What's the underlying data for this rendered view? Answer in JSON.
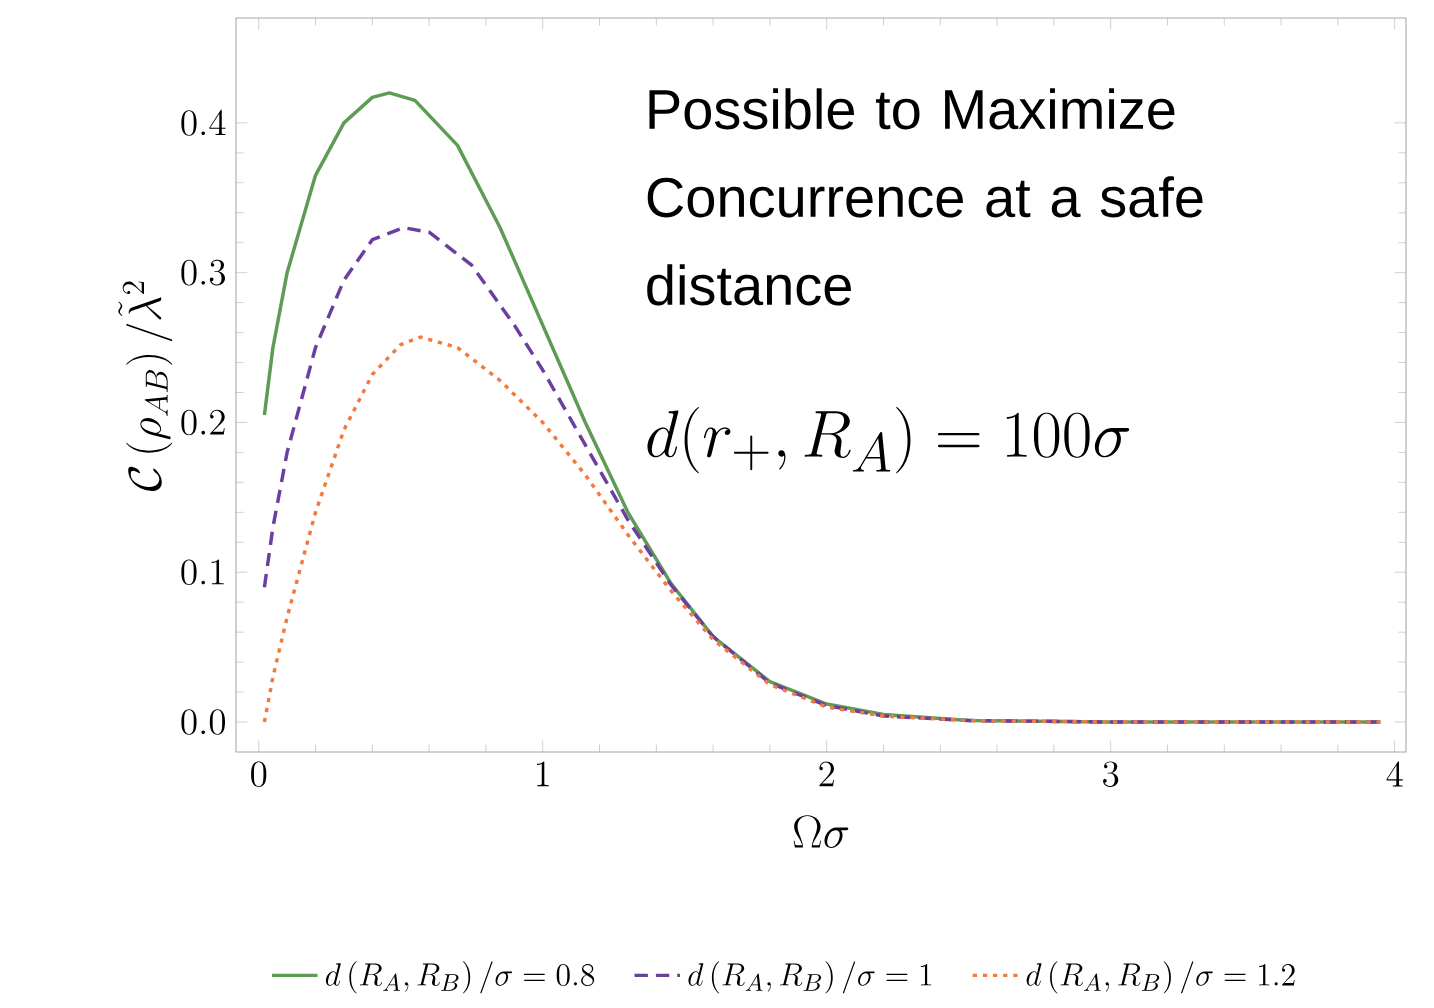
{
  "chart_data": {
    "type": "line",
    "xlabel": "\\Omega\\sigma",
    "ylabel": "\\mathcal{C}\\left(\\rho_{AB}\\right)/\\tilde{\\lambda}^{2}",
    "xlim": [
      -0.08,
      4.04
    ],
    "ylim": [
      -0.02,
      0.47
    ],
    "xticks": [
      0,
      1,
      2,
      3,
      4
    ],
    "yticks": [
      {
        "value": 0,
        "label": "0.0"
      },
      {
        "value": 0.1,
        "label": "0.1"
      },
      {
        "value": 0.2,
        "label": "0.2"
      },
      {
        "value": 0.3,
        "label": "0.3"
      },
      {
        "value": 0.4,
        "label": "0.4"
      }
    ],
    "legend": "bottom",
    "annotations": [
      "Possible to Maximize Concurrence at a safe distance",
      "d(r_{+},R_{A})=100\\sigma"
    ],
    "series": [
      {
        "name": "d\\left(R_A,R_B\\right)/\\sigma=0.8",
        "color": "#5e9b55",
        "line_style": "solid",
        "x": [
          0.02,
          0.05,
          0.1,
          0.2,
          0.3,
          0.4,
          0.46,
          0.55,
          0.7,
          0.85,
          1.0,
          1.15,
          1.3,
          1.45,
          1.6,
          1.8,
          2.0,
          2.2,
          2.5,
          3.0,
          3.5,
          3.95
        ],
        "values": [
          0.205,
          0.25,
          0.3,
          0.365,
          0.4,
          0.417,
          0.42,
          0.415,
          0.385,
          0.33,
          0.265,
          0.2,
          0.14,
          0.093,
          0.057,
          0.027,
          0.012,
          0.005,
          0.001,
          0,
          0,
          0
        ]
      },
      {
        "name": "d\\left(R_A,R_B\\right)/\\sigma=1",
        "color": "#6b3fa0",
        "line_style": "dashed",
        "x": [
          0.02,
          0.05,
          0.1,
          0.2,
          0.3,
          0.4,
          0.51,
          0.6,
          0.75,
          0.9,
          1.0,
          1.15,
          1.3,
          1.45,
          1.6,
          1.8,
          2.0,
          2.2,
          2.5,
          3.0,
          3.5,
          3.95
        ],
        "values": [
          0.09,
          0.13,
          0.18,
          0.25,
          0.295,
          0.322,
          0.33,
          0.327,
          0.305,
          0.265,
          0.235,
          0.185,
          0.135,
          0.092,
          0.057,
          0.026,
          0.011,
          0.004,
          0.001,
          0,
          0,
          0
        ]
      },
      {
        "name": "d\\left(R_A,R_B\\right)/\\sigma=1.2",
        "color": "#f27a40",
        "line_style": "dotted",
        "x": [
          0.02,
          0.05,
          0.1,
          0.2,
          0.3,
          0.4,
          0.5,
          0.57,
          0.7,
          0.85,
          1.0,
          1.15,
          1.3,
          1.45,
          1.6,
          1.8,
          2.0,
          2.2,
          2.5,
          3.0,
          3.5,
          3.95
        ],
        "values": [
          0.0,
          0.03,
          0.07,
          0.14,
          0.195,
          0.232,
          0.252,
          0.257,
          0.25,
          0.228,
          0.2,
          0.165,
          0.125,
          0.088,
          0.055,
          0.025,
          0.01,
          0.004,
          0.001,
          0,
          0,
          0
        ]
      }
    ]
  }
}
